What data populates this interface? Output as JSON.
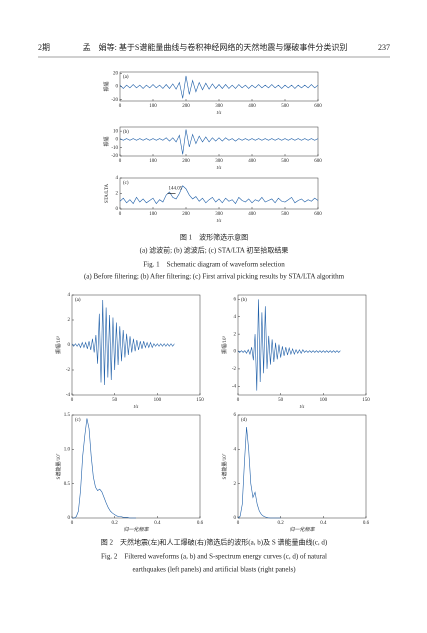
{
  "header": {
    "page_left": "2期",
    "running_title": "孟　娟等: 基于S谱能量曲线与卷积神经网络的天然地震与爆破事件分类识别",
    "page_right": "237"
  },
  "figure1": {
    "panels": [
      {
        "type": "line",
        "label": "(a)",
        "ylabel": "振幅",
        "xlabel": "t/s",
        "color": "#1f5fa8",
        "xlim": [
          0,
          600
        ],
        "xticks": [
          0,
          100,
          200,
          300,
          400,
          500,
          600
        ],
        "ylim": [
          -22,
          22
        ],
        "yticks": [
          -20,
          0,
          20
        ],
        "x": [
          0,
          10,
          20,
          30,
          40,
          50,
          60,
          70,
          80,
          90,
          100,
          110,
          120,
          130,
          140,
          150,
          160,
          170,
          180,
          190,
          200,
          210,
          220,
          230,
          240,
          250,
          260,
          270,
          280,
          290,
          300,
          310,
          320,
          330,
          340,
          350,
          360,
          370,
          380,
          390,
          400,
          410,
          420,
          430,
          440,
          450,
          460,
          470,
          480,
          490,
          500,
          510,
          520,
          530,
          540,
          550,
          560,
          570,
          580,
          590,
          600
        ],
        "values": [
          2,
          -3,
          2,
          -2,
          3,
          -2,
          2,
          -3,
          2,
          -2,
          3,
          -2,
          2,
          -3,
          3,
          -3,
          4,
          -4,
          6,
          -18,
          16,
          -12,
          9,
          -8,
          6,
          -5,
          5,
          -4,
          4,
          -3,
          3,
          -3,
          3,
          -3,
          2,
          -3,
          3,
          -2,
          2,
          -3,
          2,
          -2,
          3,
          -2,
          2,
          -2,
          3,
          -2,
          2,
          -3,
          2,
          -2,
          2,
          -3,
          2,
          -2,
          2,
          -2,
          3,
          -2,
          2
        ]
      },
      {
        "type": "line",
        "label": "(b)",
        "ylabel": "振幅",
        "xlabel": "t/s",
        "color": "#1f5fa8",
        "xlim": [
          0,
          600
        ],
        "xticks": [
          0,
          100,
          200,
          300,
          400,
          500,
          600
        ],
        "ylim": [
          -20,
          15
        ],
        "yticks": [
          -20,
          -10,
          0,
          10
        ],
        "x": [
          0,
          10,
          20,
          30,
          40,
          50,
          60,
          70,
          80,
          90,
          100,
          110,
          120,
          130,
          140,
          150,
          160,
          170,
          180,
          190,
          200,
          210,
          220,
          230,
          240,
          250,
          260,
          270,
          280,
          290,
          300,
          310,
          320,
          330,
          340,
          350,
          360,
          370,
          380,
          390,
          400,
          410,
          420,
          430,
          440,
          450,
          460,
          470,
          480,
          490,
          500,
          510,
          520,
          530,
          540,
          550,
          560,
          570,
          580,
          590,
          600
        ],
        "values": [
          1,
          -1,
          1,
          -1,
          1,
          -1,
          1,
          -1,
          1,
          -1,
          1,
          -1,
          1,
          -1,
          2,
          -2,
          2,
          -3,
          5,
          -18,
          12,
          -9,
          6,
          -5,
          4,
          -3,
          3,
          -3,
          2,
          -2,
          2,
          -2,
          2,
          -1,
          1,
          -2,
          1,
          -1,
          1,
          -1,
          1,
          -1,
          1,
          -1,
          1,
          -1,
          1,
          -1,
          1,
          -1,
          1,
          -1,
          1,
          -1,
          1,
          -1,
          1,
          -1,
          1,
          -1,
          1
        ]
      },
      {
        "type": "line",
        "label": "(c)",
        "ylabel": "STA/LTA",
        "xlabel": "t/s",
        "color": "#1f5fa8",
        "xlim": [
          0,
          600
        ],
        "xticks": [
          0,
          100,
          200,
          300,
          400,
          500,
          600
        ],
        "ylim": [
          0,
          4
        ],
        "yticks": [
          0,
          2,
          4
        ],
        "annotation": 144.05,
        "x": [
          0,
          10,
          20,
          30,
          40,
          50,
          60,
          70,
          80,
          90,
          100,
          110,
          120,
          130,
          140,
          150,
          160,
          170,
          180,
          190,
          200,
          210,
          220,
          230,
          240,
          250,
          260,
          270,
          280,
          290,
          300,
          310,
          320,
          330,
          340,
          350,
          360,
          370,
          380,
          390,
          400,
          410,
          420,
          430,
          440,
          450,
          460,
          470,
          480,
          490,
          500,
          510,
          520,
          530,
          540,
          550,
          560,
          570,
          580,
          590,
          600
        ],
        "values": [
          1,
          1.4,
          0.8,
          1.2,
          0.7,
          1.5,
          0.9,
          1.3,
          0.8,
          1.1,
          1.4,
          0.7,
          1.2,
          0.9,
          1.8,
          2.2,
          1.5,
          1.3,
          2.0,
          3.0,
          2.6,
          1.8,
          1.3,
          1.6,
          1.0,
          1.4,
          0.8,
          1.2,
          1.5,
          0.9,
          1.3,
          0.8,
          1.4,
          1.0,
          1.2,
          0.7,
          1.5,
          1.1,
          0.9,
          1.3,
          0.8,
          1.2,
          1.0,
          1.5,
          0.9,
          1.1,
          1.3,
          0.8,
          1.4,
          1.0,
          0.9,
          1.2,
          1.5,
          0.8,
          1.1,
          1.3,
          0.9,
          1.2,
          1.0,
          1.4,
          1.1
        ]
      }
    ],
    "caption_cn": "图 1　波形筛选示意图",
    "sub_cn": "(a) 滤波前; (b) 滤波后; (c) STA/LTA 初至拾取结果",
    "caption_en": "Fig. 1　Schematic diagram of waveform selection",
    "sub_en": "(a) Before filtering; (b) After filtering; (c) First arrival picking results by STA/LTA algorithm"
  },
  "figure2": {
    "panels": [
      {
        "type": "line",
        "label": "(a)",
        "ylabel": "振幅/10³",
        "xlabel": "t/s",
        "color": "#1f5fa8",
        "xlim": [
          0,
          150
        ],
        "xticks": [
          0,
          50,
          100,
          150
        ],
        "ylim": [
          -4,
          4
        ],
        "yticks": [
          -4,
          -2,
          0,
          2,
          4
        ],
        "x": [
          0,
          2,
          4,
          6,
          8,
          10,
          12,
          14,
          16,
          18,
          20,
          22,
          24,
          26,
          28,
          30,
          32,
          34,
          36,
          38,
          40,
          42,
          44,
          46,
          48,
          50,
          52,
          54,
          56,
          58,
          60,
          62,
          64,
          66,
          68,
          70,
          72,
          74,
          76,
          78,
          80,
          82,
          84,
          86,
          88,
          90,
          92,
          94,
          96,
          98,
          100,
          102,
          104,
          106,
          108,
          110,
          112,
          114,
          116,
          118,
          120
        ],
        "values": [
          0.1,
          -0.1,
          0.1,
          -0.1,
          0.1,
          -0.2,
          0.2,
          -0.2,
          0.2,
          -0.3,
          0.3,
          -0.4,
          0.5,
          -0.6,
          0.8,
          -1.5,
          2.5,
          -3.0,
          3.6,
          -3.2,
          3.0,
          -2.6,
          2.4,
          -2.8,
          2.2,
          -2.0,
          1.8,
          -1.6,
          1.5,
          -1.3,
          1.2,
          -1.0,
          0.9,
          -0.8,
          0.7,
          -0.6,
          0.5,
          -0.5,
          0.4,
          -0.4,
          0.3,
          -0.3,
          0.3,
          -0.2,
          0.2,
          -0.2,
          0.2,
          -0.2,
          0.1,
          -0.1,
          0.1,
          -0.1,
          0.1,
          -0.1,
          0.1,
          -0.1,
          0.1,
          -0.1,
          0.1,
          -0.1,
          0.1
        ]
      },
      {
        "type": "line",
        "label": "(b)",
        "ylabel": "振幅/10³",
        "xlabel": "t/s",
        "color": "#1f5fa8",
        "xlim": [
          0,
          150
        ],
        "xticks": [
          0,
          50,
          100,
          150
        ],
        "ylim": [
          -5,
          6.5
        ],
        "yticks": [
          -4,
          -2,
          0,
          2,
          4,
          6
        ],
        "x": [
          0,
          2,
          4,
          6,
          8,
          10,
          12,
          14,
          16,
          18,
          20,
          22,
          24,
          26,
          28,
          30,
          32,
          34,
          36,
          38,
          40,
          42,
          44,
          46,
          48,
          50,
          52,
          54,
          56,
          58,
          60,
          62,
          64,
          66,
          68,
          70,
          72,
          74,
          76,
          78,
          80,
          82,
          84,
          86,
          88,
          90,
          92,
          94,
          96,
          98,
          100,
          102,
          104,
          106,
          108,
          110,
          112,
          114,
          116,
          118,
          120
        ],
        "values": [
          0.1,
          -0.1,
          0.1,
          -0.1,
          0.1,
          -0.2,
          0.2,
          -0.3,
          0.5,
          -1.0,
          2.0,
          -4.5,
          6.0,
          -3.5,
          4.5,
          -2.5,
          5.2,
          -2.0,
          1.8,
          -1.5,
          1.4,
          -1.2,
          1.0,
          -0.9,
          0.8,
          -0.7,
          0.6,
          -0.5,
          0.5,
          -0.4,
          0.4,
          -0.3,
          0.3,
          -0.3,
          0.2,
          -0.2,
          0.2,
          -0.2,
          0.2,
          -0.1,
          0.1,
          -0.1,
          0.1,
          -0.1,
          0.1,
          -0.1,
          0.1,
          -0.1,
          0.1,
          -0.1,
          0.1,
          -0.1,
          0.1,
          -0.1,
          0.1,
          -0.1,
          0.1,
          -0.1,
          0.1,
          -0.1,
          0.1
        ]
      },
      {
        "type": "line",
        "label": "(c)",
        "ylabel": "S谱能量/10⁷",
        "xlabel": "归一化频率",
        "color": "#1f5fa8",
        "xlim": [
          0,
          0.6
        ],
        "xticks": [
          0,
          0.2,
          0.4,
          0.6
        ],
        "ylim": [
          0,
          1.5
        ],
        "yticks": [
          0,
          0.5,
          {
            "value": 1,
            "label": "1.0"
          },
          1.5
        ],
        "x": [
          0,
          0.01,
          0.02,
          0.03,
          0.04,
          0.05,
          0.06,
          0.07,
          0.08,
          0.09,
          0.1,
          0.11,
          0.12,
          0.13,
          0.14,
          0.15,
          0.16,
          0.17,
          0.18,
          0.19,
          0.2,
          0.21,
          0.22,
          0.23,
          0.24,
          0.25,
          0.26,
          0.27,
          0.28,
          0.29,
          0.3
        ],
        "values": [
          0,
          0,
          0.02,
          0.1,
          0.4,
          0.9,
          1.2,
          1.45,
          1.3,
          0.9,
          0.6,
          0.45,
          0.4,
          0.42,
          0.38,
          0.3,
          0.22,
          0.15,
          0.1,
          0.07,
          0.05,
          0.03,
          0.02,
          0.02,
          0.01,
          0.01,
          0.01,
          0,
          0,
          0,
          0
        ]
      },
      {
        "type": "line",
        "label": "(d)",
        "ylabel": "S谱能量/10⁷",
        "xlabel": "归一化频率",
        "color": "#1f5fa8",
        "xlim": [
          0,
          0.6
        ],
        "xticks": [
          0,
          0.2,
          0.4,
          0.6
        ],
        "ylim": [
          0,
          6
        ],
        "yticks": [
          0,
          2,
          4,
          6
        ],
        "x": [
          0,
          0.01,
          0.02,
          0.03,
          0.04,
          0.05,
          0.06,
          0.07,
          0.08,
          0.09,
          0.1,
          0.11,
          0.12,
          0.13,
          0.14,
          0.15,
          0.16,
          0.17,
          0.18,
          0.19,
          0.2
        ],
        "values": [
          0,
          0.1,
          0.8,
          3.2,
          5.3,
          4.0,
          2.0,
          1.2,
          1.5,
          0.8,
          0.4,
          0.2,
          0.1,
          0.05,
          0.02,
          0,
          0,
          0,
          0,
          0,
          0
        ]
      }
    ],
    "caption_cn": "图 2　天然地震(左)和人工爆破(右)筛选后的波形(a, b)及 S 谱能量曲线(c, d)",
    "caption_en_1": "Fig. 2　Filtered waveforms (a, b) and S-spectrum energy curves (c, d) of natural",
    "caption_en_2": "earthquakes (left panels) and artificial blasts (right panels)"
  }
}
